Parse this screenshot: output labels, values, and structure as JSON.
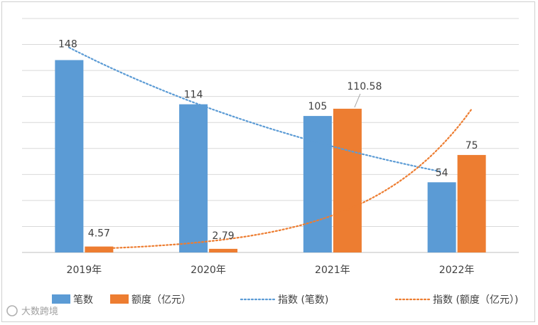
{
  "chart_data": {
    "type": "bar",
    "title": "",
    "xlabel": "",
    "ylabel": "",
    "categories": [
      "2019年",
      "2020年",
      "2021年",
      "2022年"
    ],
    "series": [
      {
        "name": "笔数",
        "values": [
          148,
          114,
          105,
          54
        ],
        "color": "#5b9bd5"
      },
      {
        "name": "额度（亿元）",
        "values": [
          4.57,
          2.79,
          110.58,
          75
        ],
        "color": "#ed7d31"
      }
    ],
    "data_labels": {
      "笔数": [
        "148",
        "114",
        "105",
        "54"
      ],
      "额度（亿元）": [
        "4.57",
        "2.79",
        "110.58",
        "75"
      ]
    },
    "trendlines": [
      {
        "name": "指数 (笔数)",
        "type": "exponential",
        "series": "笔数",
        "color": "#5b9bd5",
        "style": "dotted"
      },
      {
        "name": "指数 (额度（亿元）)",
        "type": "exponential",
        "series": "额度（亿元）",
        "color": "#ed7d31",
        "style": "dotted"
      }
    ],
    "ylim": [
      0,
      180
    ],
    "grid": true,
    "y_tick_labels_shown": false,
    "legend_position": "bottom"
  },
  "watermark": "大数跨境"
}
